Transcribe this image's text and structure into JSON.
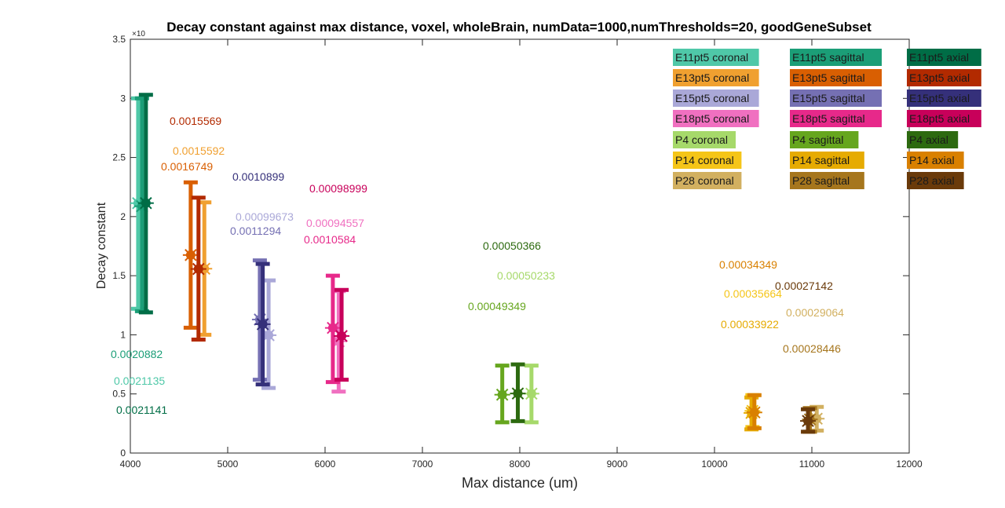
{
  "chart_data": {
    "type": "scatter",
    "title": "Decay constant against max distance, voxel, wholeBrain, numData=1000,numThresholds=20, goodGeneSubset",
    "xlabel": "Max distance (um)",
    "ylabel": "Decay constant",
    "xlim": [
      4000,
      12000
    ],
    "ylim": [
      0,
      0.0035
    ],
    "y_exponent_label": "×10",
    "x_ticks": [
      4000,
      5000,
      6000,
      7000,
      8000,
      9000,
      10000,
      11000,
      12000
    ],
    "x_tick_labels": [
      "4000",
      "5000",
      "6000",
      "7000",
      "8000",
      "9000",
      "10000",
      "11000",
      "12000"
    ],
    "y_ticks": [
      0,
      0.0005,
      0.001,
      0.0015,
      0.002,
      0.0025,
      0.003,
      0.0035
    ],
    "y_tick_labels": [
      "0",
      "0.5",
      "1",
      "1.5",
      "2",
      "2.5",
      "3",
      "3.5"
    ],
    "grid": false,
    "legend_position": "top-right",
    "series": [
      {
        "name": "E11pt5 coronal",
        "color": "#4fc8a8",
        "x": 4080,
        "y": 0.0021135,
        "lo": 0.00122,
        "hi": 0.003,
        "label": "0.0021135"
      },
      {
        "name": "E11pt5 sagittal",
        "color": "#1b9e77",
        "x": 4120,
        "y": 0.0020882,
        "lo": 0.0012,
        "hi": 0.003,
        "label": "0.0020882"
      },
      {
        "name": "E11pt5 axial",
        "color": "#006d46",
        "x": 4160,
        "y": 0.0021141,
        "lo": 0.00119,
        "hi": 0.00303,
        "label": "0.0021141"
      },
      {
        "name": "E13pt5 coronal",
        "color": "#f0a030",
        "x": 4760,
        "y": 0.0015592,
        "lo": 0.001,
        "hi": 0.00212,
        "label": "0.0015592"
      },
      {
        "name": "E13pt5 sagittal",
        "color": "#d95f02",
        "x": 4620,
        "y": 0.0016749,
        "lo": 0.00106,
        "hi": 0.00229,
        "label": "0.0016749"
      },
      {
        "name": "E13pt5 axial",
        "color": "#b22a00",
        "x": 4700,
        "y": 0.0015569,
        "lo": 0.00096,
        "hi": 0.00216,
        "label": "0.0015569"
      },
      {
        "name": "E15pt5 coronal",
        "color": "#aaa8d8",
        "x": 5420,
        "y": 0.00099673,
        "lo": 0.00055,
        "hi": 0.00146,
        "label": "0.00099673"
      },
      {
        "name": "E15pt5 sagittal",
        "color": "#7570b3",
        "x": 5330,
        "y": 0.0011294,
        "lo": 0.00062,
        "hi": 0.00163,
        "label": "0.0011294"
      },
      {
        "name": "E15pt5 axial",
        "color": "#35307a",
        "x": 5360,
        "y": 0.0010899,
        "lo": 0.00058,
        "hi": 0.0016,
        "label": "0.0010899"
      },
      {
        "name": "E18pt5 coronal",
        "color": "#f070c0",
        "x": 6140,
        "y": 0.00094557,
        "lo": 0.00052,
        "hi": 0.00137,
        "label": "0.00094557"
      },
      {
        "name": "E18pt5 sagittal",
        "color": "#e7298a",
        "x": 6080,
        "y": 0.0010584,
        "lo": 0.0006,
        "hi": 0.0015,
        "label": "0.0010584"
      },
      {
        "name": "E18pt5 axial",
        "color": "#c8005a",
        "x": 6170,
        "y": 0.00098999,
        "lo": 0.00062,
        "hi": 0.00138,
        "label": "0.00098999"
      },
      {
        "name": "P4 coronal",
        "color": "#a6d96a",
        "x": 8120,
        "y": 0.00050233,
        "lo": 0.00026,
        "hi": 0.00074,
        "label": "0.00050233"
      },
      {
        "name": "P4 sagittal",
        "color": "#66a61e",
        "x": 7820,
        "y": 0.00049349,
        "lo": 0.00026,
        "hi": 0.00074,
        "label": "0.00049349"
      },
      {
        "name": "P4 axial",
        "color": "#2d6a10",
        "x": 7980,
        "y": 0.00050366,
        "lo": 0.00027,
        "hi": 0.00075,
        "label": "0.00050366"
      },
      {
        "name": "P14 coronal",
        "color": "#f5c518",
        "x": 10390,
        "y": 0.00035664,
        "lo": 0.00022,
        "hi": 0.00049,
        "label": "0.00035664"
      },
      {
        "name": "P14 sagittal",
        "color": "#e6ab02",
        "x": 10380,
        "y": 0.00033922,
        "lo": 0.0002,
        "hi": 0.00047,
        "label": "0.00033922"
      },
      {
        "name": "P14 axial",
        "color": "#d98000",
        "x": 10410,
        "y": 0.00034349,
        "lo": 0.00021,
        "hi": 0.00049,
        "label": "0.00034349"
      },
      {
        "name": "P28 coronal",
        "color": "#d2b060",
        "x": 11050,
        "y": 0.00029064,
        "lo": 0.00019,
        "hi": 0.00039,
        "label": "0.00029064"
      },
      {
        "name": "P28 sagittal",
        "color": "#a6761d",
        "x": 10980,
        "y": 0.00028446,
        "lo": 0.00018,
        "hi": 0.00038,
        "label": "0.00028446"
      },
      {
        "name": "P28 axial",
        "color": "#6a3a0a",
        "x": 10960,
        "y": 0.00027142,
        "lo": 0.00018,
        "hi": 0.00037,
        "label": "0.00027142"
      }
    ]
  }
}
